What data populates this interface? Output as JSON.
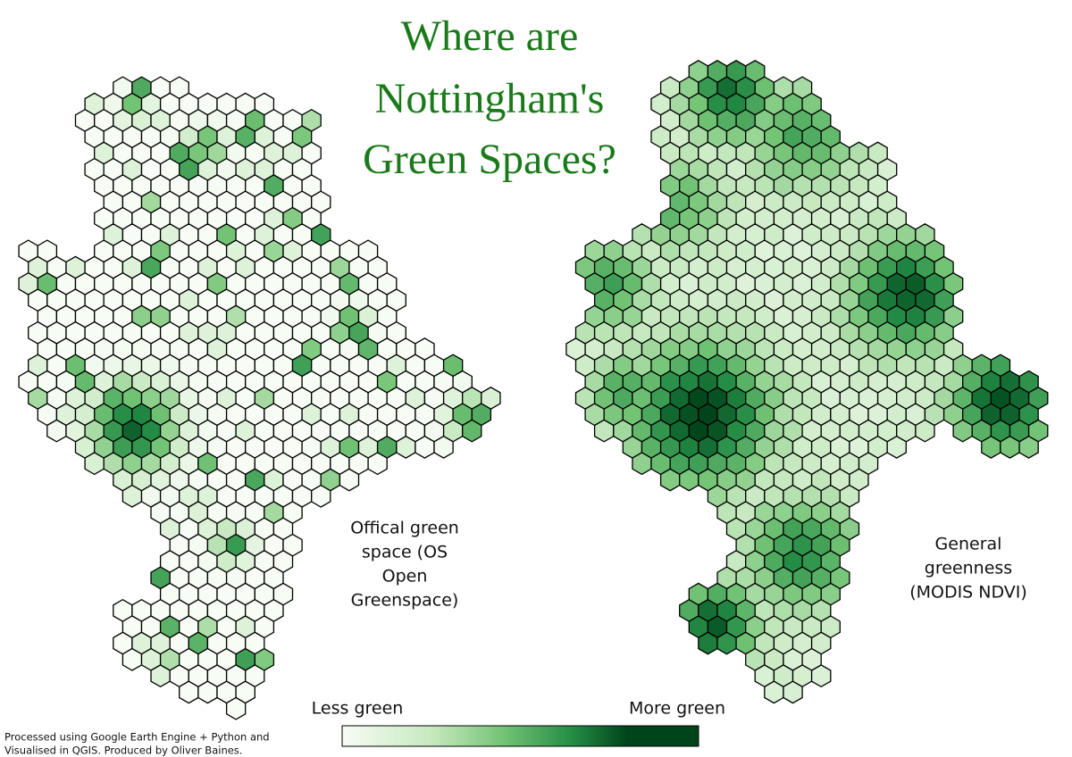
{
  "title": [
    "Where are",
    "Nottingham's",
    "Green Spaces?"
  ],
  "maps": [
    {
      "caption": [
        "Offical green",
        "space (OS",
        "Open",
        "Greenspace)"
      ]
    },
    {
      "caption": [
        "General",
        "greenness",
        "(MODIS NDVI)"
      ]
    }
  ],
  "legend": {
    "low": "Less green",
    "high": "More green"
  },
  "footer": [
    "Processed using Google Earth Engine + Python and",
    "Visualised in QGIS. Produced by Oliver Baines."
  ]
}
